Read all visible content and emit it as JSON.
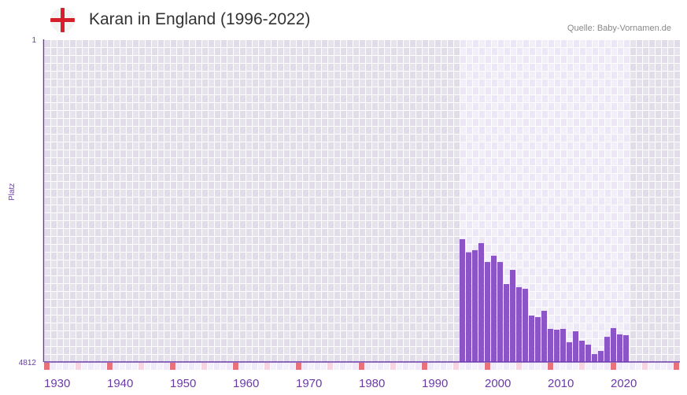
{
  "header": {
    "title": "Karan in England (1996-2022)",
    "flag_icon": "england-flag-icon",
    "source": "Quelle: Baby-Vornamen.de"
  },
  "chart_data": {
    "type": "bar",
    "title": "Karan in England (1996-2022)",
    "xlabel": "",
    "ylabel": "Platz",
    "xlim": [
      1930,
      2030
    ],
    "ylim": [
      1,
      4812
    ],
    "y_inverted": true,
    "y_ticks": [
      "1",
      "4812"
    ],
    "x_ticks": [
      "1930",
      "1940",
      "1950",
      "1960",
      "1970",
      "1980",
      "1990",
      "2000",
      "2010",
      "2020"
    ],
    "categories": [
      1996,
      1997,
      1998,
      1999,
      2000,
      2001,
      2002,
      2003,
      2004,
      2005,
      2006,
      2007,
      2008,
      2009,
      2010,
      2011,
      2012,
      2013,
      2014,
      2015,
      2016,
      2017,
      2018,
      2019,
      2020,
      2021,
      2022
    ],
    "values": [
      2981,
      3176,
      3145,
      3040,
      3322,
      3228,
      3322,
      3650,
      3439,
      3697,
      3721,
      4120,
      4143,
      4049,
      4319,
      4331,
      4319,
      4518,
      4354,
      4495,
      4554,
      4695,
      4648,
      4437,
      4307,
      4401,
      4413
    ],
    "colors": {
      "bar": "#8b55c8",
      "axis": "#6a3aa8",
      "decade": "#e8727a",
      "half": "#f5d5df"
    }
  }
}
